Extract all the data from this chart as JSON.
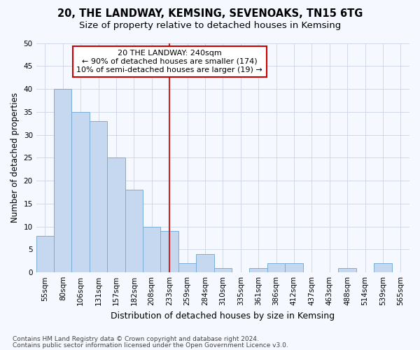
{
  "title1": "20, THE LANDWAY, KEMSING, SEVENOAKS, TN15 6TG",
  "title2": "Size of property relative to detached houses in Kemsing",
  "xlabel": "Distribution of detached houses by size in Kemsing",
  "ylabel": "Number of detached properties",
  "categories": [
    "55sqm",
    "80sqm",
    "106sqm",
    "131sqm",
    "157sqm",
    "182sqm",
    "208sqm",
    "233sqm",
    "259sqm",
    "284sqm",
    "310sqm",
    "335sqm",
    "361sqm",
    "386sqm",
    "412sqm",
    "437sqm",
    "463sqm",
    "488sqm",
    "514sqm",
    "539sqm",
    "565sqm"
  ],
  "values": [
    8,
    40,
    35,
    33,
    25,
    18,
    10,
    9,
    2,
    4,
    1,
    0,
    1,
    2,
    2,
    0,
    0,
    1,
    0,
    2,
    0
  ],
  "bar_color": "#c5d8f0",
  "bar_edge_color": "#7aadd4",
  "vline_x": 7,
  "vline_color": "#cc2222",
  "annotation_text": "20 THE LANDWAY: 240sqm\n← 90% of detached houses are smaller (174)\n10% of semi-detached houses are larger (19) →",
  "annotation_box_color": "#ffffff",
  "annotation_box_edge_color": "#cc0000",
  "ylim": [
    0,
    50
  ],
  "yticks": [
    0,
    5,
    10,
    15,
    20,
    25,
    30,
    35,
    40,
    45,
    50
  ],
  "grid_color": "#d0d8e8",
  "bg_color": "#f5f8ff",
  "footer1": "Contains HM Land Registry data © Crown copyright and database right 2024.",
  "footer2": "Contains public sector information licensed under the Open Government Licence v3.0.",
  "title1_fontsize": 10.5,
  "title2_fontsize": 9.5,
  "xlabel_fontsize": 9,
  "ylabel_fontsize": 8.5,
  "tick_fontsize": 7.5,
  "annotation_fontsize": 8,
  "footer_fontsize": 6.5
}
